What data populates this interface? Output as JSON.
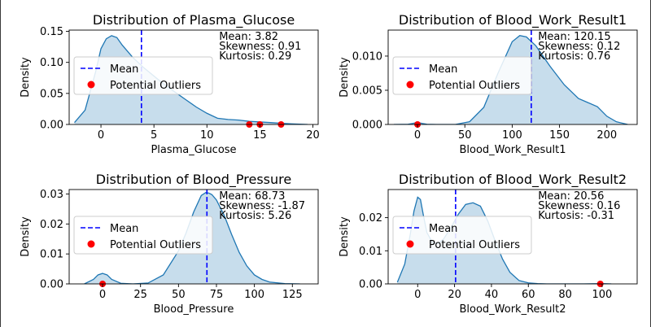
{
  "chart_data": [
    {
      "type": "area",
      "title": "Distribution of Plasma_Glucose",
      "xlabel": "Plasma_Glucose",
      "ylabel": "Density",
      "xlim": [
        -3,
        20.5
      ],
      "ylim": [
        0,
        0.152
      ],
      "xticks": [
        0,
        5,
        10,
        15,
        20
      ],
      "yticks": [
        0.0,
        0.05,
        0.1,
        0.15
      ],
      "ytick_decimals": 2,
      "kde": {
        "x": [
          -2.5,
          -1.5,
          -0.5,
          0,
          0.5,
          1,
          1.5,
          2,
          3,
          4,
          5,
          6,
          7,
          8,
          9,
          10,
          11,
          12,
          13,
          14,
          15,
          16,
          17,
          18,
          19.5
        ],
        "y": [
          0.003,
          0.023,
          0.085,
          0.122,
          0.138,
          0.143,
          0.14,
          0.128,
          0.108,
          0.092,
          0.078,
          0.064,
          0.052,
          0.04,
          0.028,
          0.018,
          0.01,
          0.008,
          0.007,
          0.005,
          0.004,
          0.003,
          0.002,
          0.001,
          0.0
        ]
      },
      "mean": 3.82,
      "outliers": [
        14,
        15,
        17
      ],
      "stats": {
        "mean": "Mean: 3.82",
        "skewness": "Skewness: 0.91",
        "kurtosis": "Kurtosis: 0.29"
      },
      "legend": {
        "mean_label": "Mean",
        "outlier_label": "Potential Outliers",
        "position": "center-left"
      }
    },
    {
      "type": "area",
      "title": "Distribution of Blood_Work_Result1",
      "xlabel": "Blood_Work_Result1",
      "ylabel": "Density",
      "xlim": [
        -31,
        232
      ],
      "ylim": [
        0,
        0.0138
      ],
      "xticks": [
        0,
        50,
        100,
        150,
        200
      ],
      "yticks": [
        0.0,
        0.005,
        0.01
      ],
      "ytick_decimals": 3,
      "kde": {
        "x": [
          -25,
          -10,
          -5,
          0,
          5,
          10,
          20,
          40,
          55,
          70,
          85,
          100,
          108,
          115,
          125,
          140,
          155,
          170,
          180,
          190,
          200,
          210,
          222
        ],
        "y": [
          0.0,
          3e-05,
          0.00015,
          0.0003,
          0.00015,
          3e-05,
          0.0,
          0.0,
          0.0004,
          0.0025,
          0.0075,
          0.0121,
          0.013,
          0.0128,
          0.0115,
          0.0085,
          0.0058,
          0.0038,
          0.0032,
          0.0026,
          0.0012,
          0.0004,
          0.0
        ]
      },
      "mean": 120.15,
      "outliers": [
        0
      ],
      "stats": {
        "mean": "Mean: 120.15",
        "skewness": "Skewness: 0.12",
        "kurtosis": "Kurtosis: 0.76"
      },
      "legend": {
        "mean_label": "Mean",
        "outlier_label": "Potential Outliers",
        "position": "center-left"
      }
    },
    {
      "type": "area",
      "title": "Distribution of Blood_Pressure",
      "xlabel": "Blood_Pressure",
      "ylabel": "Density",
      "xlim": [
        -22,
        142
      ],
      "ylim": [
        0,
        0.0315
      ],
      "xticks": [
        0,
        25,
        50,
        75,
        100,
        125
      ],
      "yticks": [
        0.0,
        0.01,
        0.02,
        0.03
      ],
      "ytick_decimals": 2,
      "kde": {
        "x": [
          -12,
          -6,
          -3,
          0,
          3,
          6,
          12,
          20,
          30,
          40,
          50,
          55,
          60,
          65,
          68,
          70,
          72,
          75,
          80,
          85,
          90,
          95,
          100,
          105,
          110,
          120,
          130
        ],
        "y": [
          0.0,
          0.0015,
          0.003,
          0.0035,
          0.003,
          0.0015,
          0.0002,
          0.0,
          0.0003,
          0.003,
          0.011,
          0.017,
          0.024,
          0.0295,
          0.0305,
          0.0303,
          0.0298,
          0.028,
          0.023,
          0.0165,
          0.0105,
          0.006,
          0.003,
          0.0015,
          0.0006,
          0.0001,
          0.0
        ]
      },
      "mean": 68.73,
      "outliers": [
        0
      ],
      "stats": {
        "mean": "Mean: 68.73",
        "skewness": "Skewness: -1.87",
        "kurtosis": "Kurtosis: 5.26"
      },
      "legend": {
        "mean_label": "Mean",
        "outlier_label": "Potential Outliers",
        "position": "center-left"
      }
    },
    {
      "type": "area",
      "title": "Distribution of Blood_Work_Result2",
      "xlabel": "Blood_Work_Result2",
      "ylabel": "Density",
      "xlim": [
        -16,
        119
      ],
      "ylim": [
        0,
        0.0285
      ],
      "xticks": [
        0,
        20,
        40,
        60,
        80,
        100
      ],
      "yticks": [
        0.0,
        0.01,
        0.02
      ],
      "ytick_decimals": 2,
      "kde": {
        "x": [
          -11,
          -7,
          -4,
          -2,
          0,
          1.5,
          3,
          5,
          8,
          11,
          14,
          18,
          22,
          26,
          30,
          34,
          38,
          42,
          46,
          50,
          55,
          60,
          65,
          70,
          80,
          90,
          100,
          105
        ],
        "y": [
          0.0005,
          0.006,
          0.015,
          0.022,
          0.0262,
          0.0255,
          0.021,
          0.0155,
          0.0125,
          0.0122,
          0.0135,
          0.017,
          0.021,
          0.024,
          0.0245,
          0.0235,
          0.019,
          0.013,
          0.0075,
          0.0035,
          0.001,
          0.0003,
          0.0001,
          0.0,
          0.0,
          0.0,
          0.0001,
          0.0
        ]
      },
      "mean": 20.56,
      "outliers": [
        99
      ],
      "stats": {
        "mean": "Mean: 20.56",
        "skewness": "Skewness: 0.16",
        "kurtosis": "Kurtosis: -0.31"
      },
      "legend": {
        "mean_label": "Mean",
        "outlier_label": "Potential Outliers",
        "position": "center-left"
      }
    }
  ],
  "colors": {
    "kde_line": "#1f77b4",
    "kde_fill": "#1f77b4",
    "mean_line": "#0000ff",
    "outlier": "#ff0000",
    "legend_border": "#cccccc"
  }
}
